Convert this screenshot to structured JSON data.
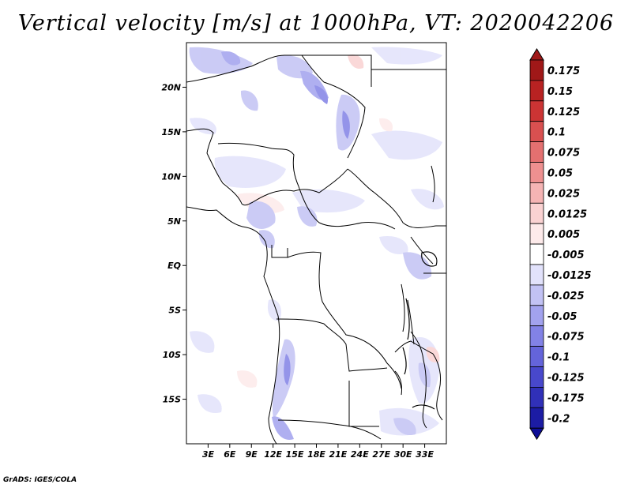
{
  "title": "Vertical velocity [m/s] at 1000hPa, VT: 2020042206",
  "credit": "GrADS: IGES/COLA",
  "map": {
    "lon_range": [
      0,
      36
    ],
    "lat_range": [
      -20,
      25
    ],
    "lat_ticks": [
      {
        "value": 20,
        "label": "20N"
      },
      {
        "value": 15,
        "label": "15N"
      },
      {
        "value": 10,
        "label": "10N"
      },
      {
        "value": 5,
        "label": "5N"
      },
      {
        "value": 0,
        "label": "EQ"
      },
      {
        "value": -5,
        "label": "5S"
      },
      {
        "value": -10,
        "label": "10S"
      },
      {
        "value": -15,
        "label": "15S"
      }
    ],
    "lon_ticks": [
      {
        "value": 3,
        "label": "3E"
      },
      {
        "value": 6,
        "label": "6E"
      },
      {
        "value": 9,
        "label": "9E"
      },
      {
        "value": 12,
        "label": "12E"
      },
      {
        "value": 15,
        "label": "15E"
      },
      {
        "value": 18,
        "label": "18E"
      },
      {
        "value": 21,
        "label": "21E"
      },
      {
        "value": 24,
        "label": "24E"
      },
      {
        "value": 27,
        "label": "27E"
      },
      {
        "value": 30,
        "label": "30E"
      },
      {
        "value": 33,
        "label": "33E"
      }
    ]
  },
  "colorbar": {
    "levels": [
      {
        "label": "0.175",
        "color": "#a01818"
      },
      {
        "label": "0.15",
        "color": "#b82222"
      },
      {
        "label": "0.125",
        "color": "#cc3434"
      },
      {
        "label": "0.1",
        "color": "#d95050"
      },
      {
        "label": "0.075",
        "color": "#e47070"
      },
      {
        "label": "0.05",
        "color": "#ee9090"
      },
      {
        "label": "0.025",
        "color": "#f5b4b4"
      },
      {
        "label": "0.0125",
        "color": "#fad2d2"
      },
      {
        "label": "0.005",
        "color": "#fdeaea"
      },
      {
        "label": "-0.005",
        "color": "#ffffff"
      },
      {
        "label": "-0.0125",
        "color": "#e2e2fb"
      },
      {
        "label": "-0.025",
        "color": "#c2c2f4"
      },
      {
        "label": "-0.05",
        "color": "#a2a2ee"
      },
      {
        "label": "-0.075",
        "color": "#8282e6"
      },
      {
        "label": "-0.1",
        "color": "#6464da"
      },
      {
        "label": "-0.125",
        "color": "#4848cc"
      },
      {
        "label": "-0.175",
        "color": "#3030b8"
      },
      {
        "label": "-0.2",
        "color": "#1c1ca4"
      }
    ],
    "top_color": "#a01818",
    "bottom_color": "#0e0e96"
  }
}
